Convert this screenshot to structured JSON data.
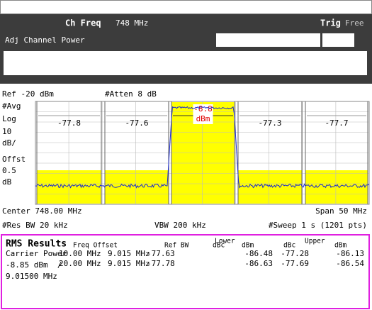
{
  "header": {
    "title": "Ch Freq",
    "value": "748 MHz",
    "trig_label": "Trig",
    "trig_value": "Free",
    "mode": "Adj Channel Power"
  },
  "display": {
    "ref": "Ref -20 dBm",
    "atten": "#Atten 8 dB",
    "left_labels": [
      "#Avg",
      "Log",
      "10",
      "dB/",
      "Offst",
      "0.5",
      "dB"
    ],
    "channels": [
      "-77.8",
      "-77.6",
      "-8.8",
      "-77.3",
      "-77.7"
    ],
    "center_unit": "dBm",
    "center": "Center 748.00 MHz",
    "span": "Span 50 MHz",
    "res_bw": "#Res BW 20 kHz",
    "vbw": "VBW 200 kHz",
    "sweep": "#Sweep 1 s (1201 pts)"
  },
  "results": {
    "title": "RMS Results",
    "headers": {
      "freq_offset": "Freq Offset",
      "ref_bw": "Ref BW",
      "lower_dbc": "dBc",
      "lower": "Lower",
      "lower_dbm": "dBm",
      "upper_dbc": "dBc",
      "upper": "Upper",
      "upper_dbm": "dBm"
    },
    "carrier": [
      "Carrier Power",
      "-8.85 dBm  /",
      "9.01500 MHz"
    ],
    "rows": [
      [
        "10.00 MHz",
        "9.015 MHz",
        "-77.63",
        "-86.48",
        "-77.28",
        "-86.13"
      ],
      [
        "20.00 MHz",
        "9.015 MHz",
        "-77.78",
        "-86.63",
        "-77.69",
        "-86.54"
      ]
    ]
  }
}
